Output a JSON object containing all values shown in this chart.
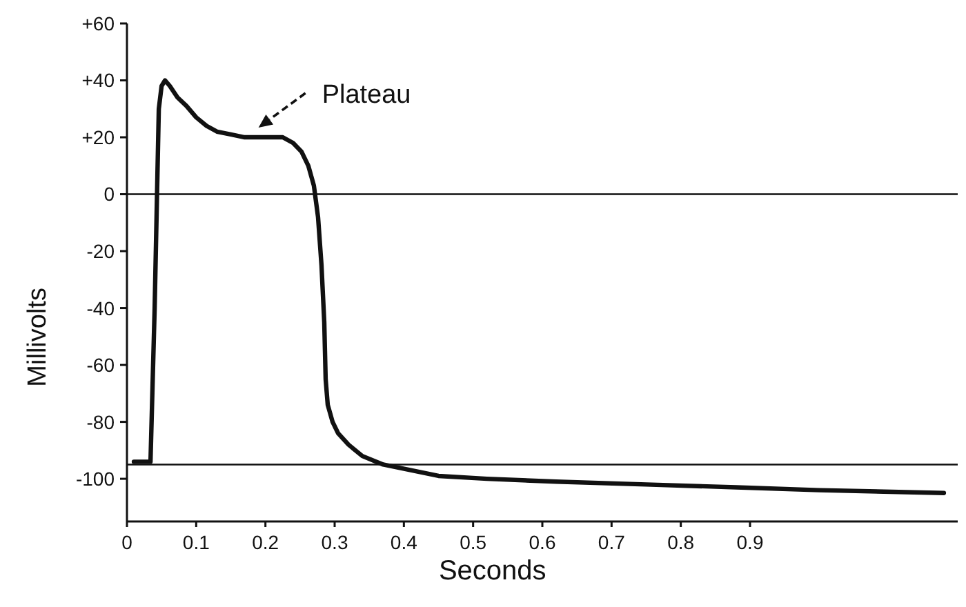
{
  "chart_data": {
    "type": "line",
    "xlabel": "Seconds",
    "ylabel": "Millivolts",
    "x": [
      0.01,
      0.034,
      0.04,
      0.046,
      0.05,
      0.055,
      0.062,
      0.073,
      0.086,
      0.1,
      0.115,
      0.13,
      0.15,
      0.17,
      0.2,
      0.225,
      0.24,
      0.252,
      0.262,
      0.27,
      0.276,
      0.281,
      0.285,
      0.287,
      0.29,
      0.297,
      0.305,
      0.32,
      0.34,
      0.37,
      0.41,
      0.45,
      0.52,
      0.62,
      0.75,
      0.88,
      1.0,
      1.18
    ],
    "series": [
      {
        "color": "#111111",
        "values": [
          -94,
          -94,
          -40,
          30,
          38,
          40,
          38,
          34,
          31,
          27,
          24,
          22,
          21,
          20,
          20,
          20,
          18,
          15,
          10,
          3,
          -8,
          -25,
          -45,
          -65,
          -74,
          -80,
          -84,
          -88,
          -92,
          -95,
          -97,
          -99,
          -100,
          -101,
          -102,
          -103,
          -104,
          -105
        ]
      }
    ],
    "xlim": [
      0,
      1.2
    ],
    "xticks": [
      0,
      0.1,
      0.2,
      0.3,
      0.4,
      0.5,
      0.6,
      0.7,
      0.8,
      0.9
    ],
    "ylim": [
      -115,
      60
    ],
    "yticks": [
      {
        "value": 60,
        "label": "+60"
      },
      {
        "value": 40,
        "label": "+40"
      },
      {
        "value": 20,
        "label": "+20"
      },
      0,
      -20,
      -40,
      -60,
      -80,
      -100
    ],
    "ref_lines": [
      {
        "axis": "y",
        "value": 0
      },
      {
        "axis": "y",
        "value": -95
      }
    ],
    "annotations": [
      {
        "text": "Plateau",
        "x": 0.19,
        "y": 20
      }
    ],
    "marker": "none",
    "line_style": "solid"
  }
}
